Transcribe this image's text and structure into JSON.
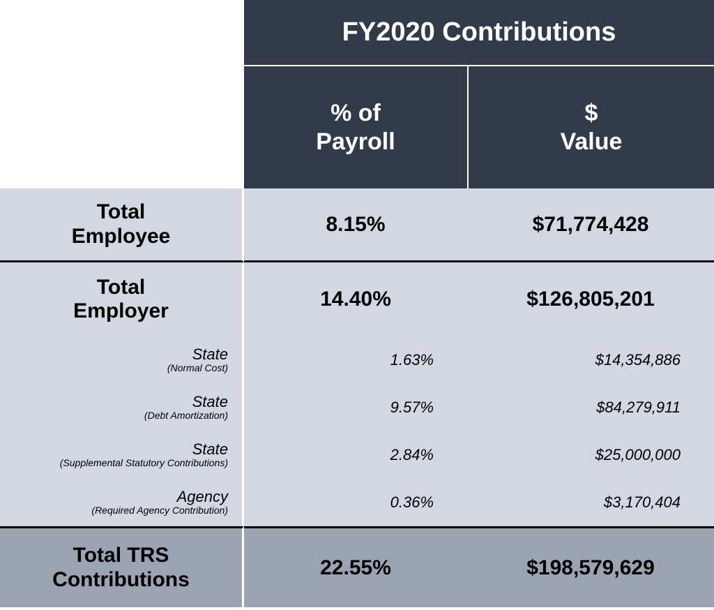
{
  "styling": {
    "header_bg": "#333b4a",
    "header_text_color": "#ffffff",
    "row_bg": "#d3d7e2",
    "total_row_bg": "#9ca3b3",
    "border_color_dark": "#000000",
    "border_color_light": "#ffffff",
    "title_fontsize": 38,
    "subheader_fontsize": 34,
    "main_row_fontsize": 30,
    "sub_row_fontsize": 22,
    "sub_note_fontsize": 14
  },
  "header": {
    "title": "FY2020 Contributions",
    "col1_line1": "% of",
    "col1_line2": "Payroll",
    "col2_line1": "$",
    "col2_line2": "Value"
  },
  "rows": {
    "employee": {
      "label_line1": "Total",
      "label_line2": "Employee",
      "pct": "8.15%",
      "val": "$71,774,428"
    },
    "employer": {
      "label_line1": "Total",
      "label_line2": "Employer",
      "pct": "14.40%",
      "val": "$126,805,201"
    },
    "sub": [
      {
        "label": "State",
        "note": "(Normal Cost)",
        "pct": "1.63%",
        "val": "$14,354,886"
      },
      {
        "label": "State",
        "note": "(Debt Amortization)",
        "pct": "9.57%",
        "val": "$84,279,911"
      },
      {
        "label": "State",
        "note": "(Supplemental Statutory Contributions)",
        "pct": "2.84%",
        "val": "$25,000,000"
      },
      {
        "label": "Agency",
        "note": "(Required Agency Contribution)",
        "pct": "0.36%",
        "val": "$3,170,404"
      }
    ],
    "total": {
      "label_line1": "Total TRS",
      "label_line2": "Contributions",
      "pct": "22.55%",
      "val": "$198,579,629"
    }
  }
}
